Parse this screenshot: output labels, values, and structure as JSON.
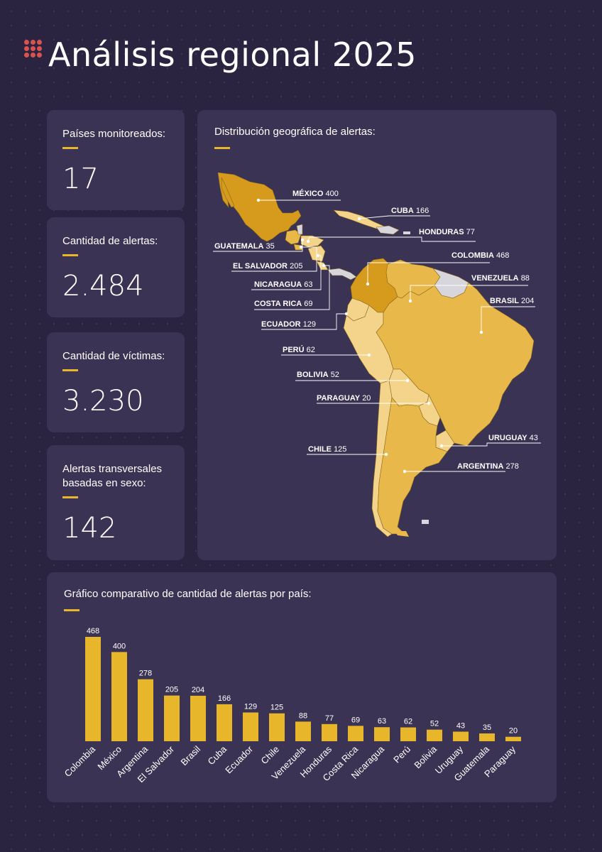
{
  "page": {
    "title": "Análisis regional 2025"
  },
  "stats": [
    {
      "label": "Países monitoreados:",
      "value": "17"
    },
    {
      "label": "Cantidad de alertas:",
      "value": "2.484"
    },
    {
      "label": "Cantidad de víctimas:",
      "value": "3.230"
    },
    {
      "label": "Alertas transversales basadas en sexo:",
      "value": "142"
    }
  ],
  "map": {
    "title": "Distribución geográfica de alertas:",
    "labels": [
      {
        "name": "MÉXICO",
        "value": "400"
      },
      {
        "name": "CUBA",
        "value": "166"
      },
      {
        "name": "HONDURAS",
        "value": "77"
      },
      {
        "name": "GUATEMALA",
        "value": "35"
      },
      {
        "name": "COLOMBIA",
        "value": "468"
      },
      {
        "name": "EL SALVADOR",
        "value": "205"
      },
      {
        "name": "VENEZUELA",
        "value": "88"
      },
      {
        "name": "NICARAGUA",
        "value": "63"
      },
      {
        "name": "COSTA RICA",
        "value": "69"
      },
      {
        "name": "BRASIL",
        "value": "204"
      },
      {
        "name": "ECUADOR",
        "value": "129"
      },
      {
        "name": "PERÚ",
        "value": "62"
      },
      {
        "name": "BOLIVIA",
        "value": "52"
      },
      {
        "name": "PARAGUAY",
        "value": "20"
      },
      {
        "name": "URUGUAY",
        "value": "43"
      },
      {
        "name": "CHILE",
        "value": "125"
      },
      {
        "name": "ARGENTINA",
        "value": "278"
      }
    ],
    "colors": {
      "dark": "#d69a1c",
      "mid": "#e8b84a",
      "light": "#f3d48a",
      "gray": "#d6d6dc"
    }
  },
  "chart_data": {
    "type": "bar",
    "title": "Gráfico comparativo de cantidad de alertas por país:",
    "categories": [
      "Colombia",
      "México",
      "Argentina",
      "El Salvador",
      "Brasil",
      "Cuba",
      "Ecuador",
      "Chile",
      "Venezuela",
      "Honduras",
      "Costa Rica",
      "Nicaragua",
      "Perú",
      "Bolivia",
      "Uruguay",
      "Guatemala",
      "Paraguay"
    ],
    "values": [
      468,
      400,
      278,
      205,
      204,
      166,
      129,
      125,
      88,
      77,
      69,
      63,
      62,
      52,
      43,
      35,
      20
    ],
    "ylim": [
      0,
      468
    ],
    "grid": false,
    "bar_color": "#e8b62a"
  }
}
